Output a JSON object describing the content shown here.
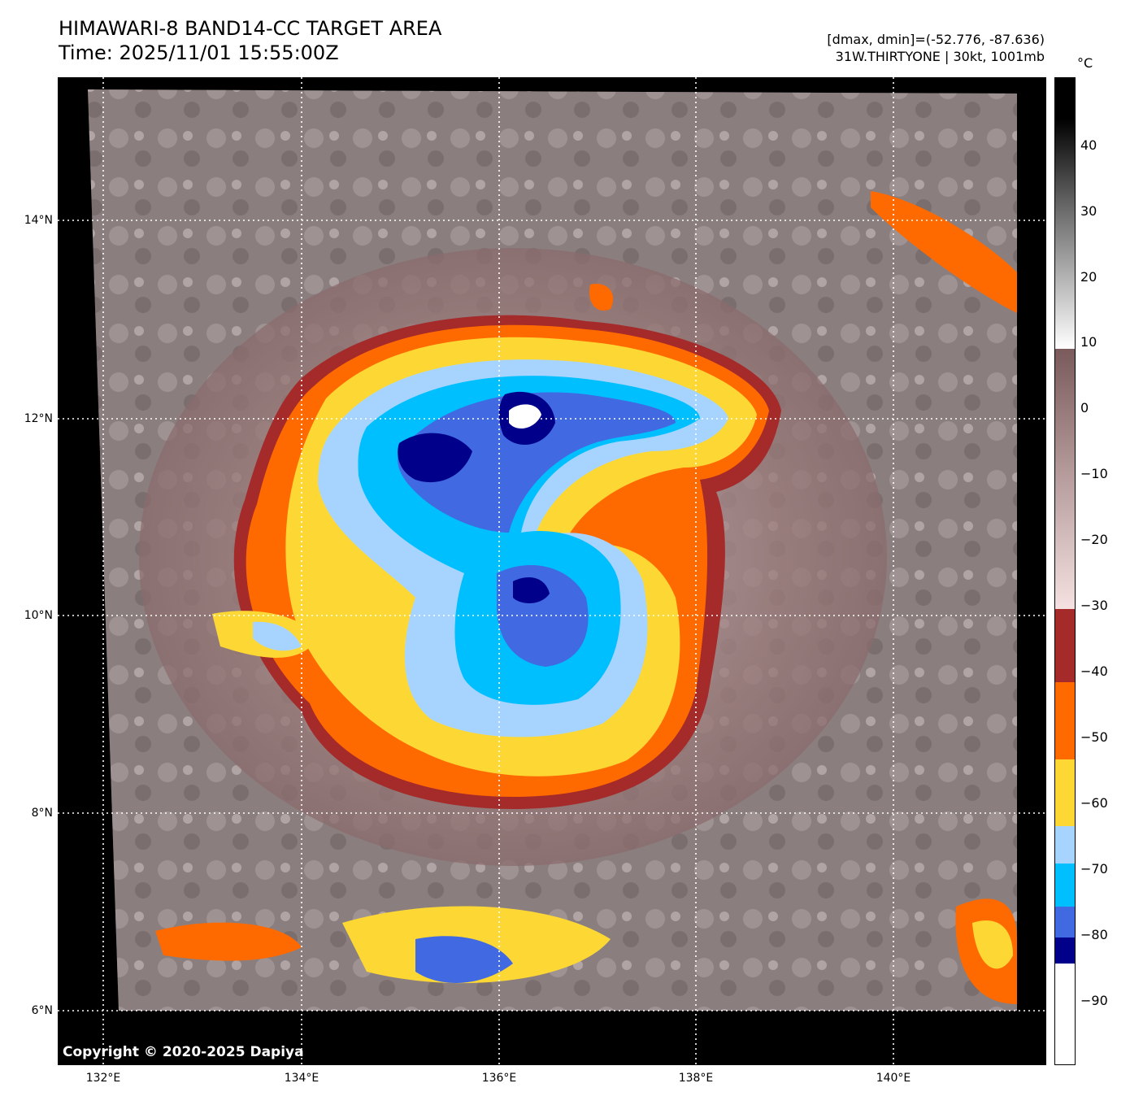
{
  "header": {
    "title_line1": "HIMAWARI-8 BAND14-CC TARGET AREA",
    "title_line2": "Time: 2025/11/01 15:55:00Z",
    "info_line1": "[dmax, dmin]=(-52.776, -87.636)",
    "info_line2": "31W.THIRTYONE | 30kt, 1001mb"
  },
  "map": {
    "copyright": "Copyright © 2020-2025 Dapiya",
    "lat_labels": [
      "14°N",
      "12°N",
      "10°N",
      "8°N",
      "6°N"
    ],
    "lon_labels": [
      "132°E",
      "134°E",
      "136°E",
      "138°E",
      "140°E"
    ]
  },
  "colorbar": {
    "unit": "°C",
    "ticks": [
      "40",
      "30",
      "20",
      "10",
      "0",
      "−10",
      "−20",
      "−30",
      "−40",
      "−50",
      "−60",
      "−70",
      "−80",
      "−90"
    ],
    "colors": {
      "black": "#000000",
      "dark_red": "#a52a2a",
      "orange": "#ff6a00",
      "yellow": "#fdd835",
      "light_blue": "#a7d4ff",
      "deep_sky_blue": "#00bfff",
      "royal_blue": "#4169e1",
      "navy": "#00008b",
      "white": "#ffffff"
    }
  }
}
